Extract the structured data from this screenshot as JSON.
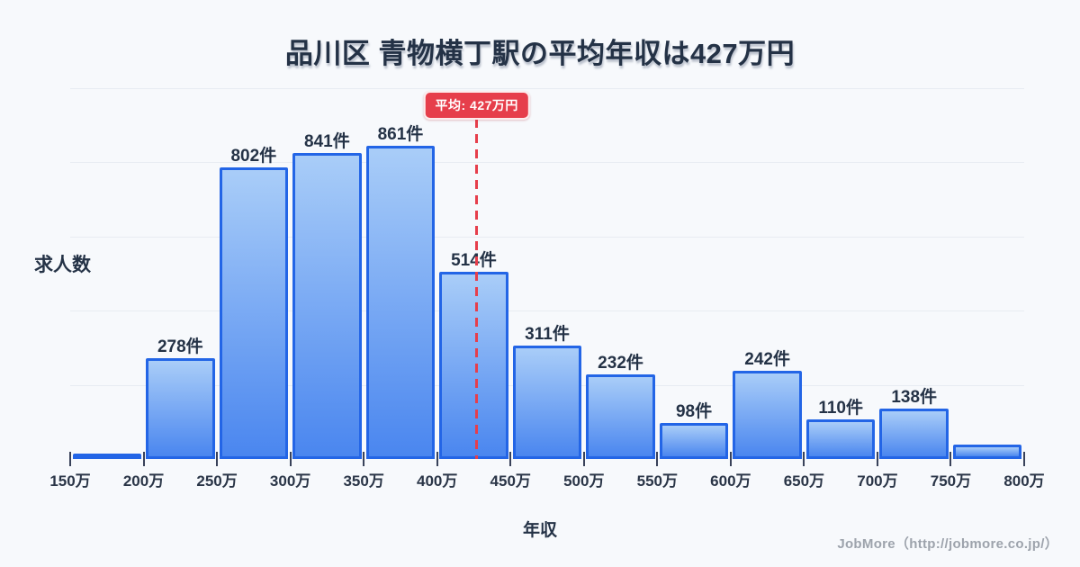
{
  "title": "品川区 青物横丁駅の平均年収は427万円",
  "average_badge": "平均: 427万円",
  "footer": "JobMore（http://jobmore.co.jp/）",
  "unit_suffix": "件",
  "colors": {
    "background": "#f7f9fc",
    "bar_top": "#a9cdf8",
    "bar_bottom": "#4a86ef",
    "bar_border": "#2365e6",
    "average_red": "#e63e4b",
    "grid": "#e8ecf2",
    "text_dark": "#243246",
    "footer_gray": "#9da3ac"
  },
  "chart_data": {
    "type": "bar",
    "title": "品川区 青物横丁駅の平均年収は427万円",
    "xlabel": "年収",
    "ylabel": "求人数",
    "x_ticks": [
      "150万",
      "200万",
      "250万",
      "300万",
      "350万",
      "400万",
      "450万",
      "500万",
      "550万",
      "600万",
      "650万",
      "700万",
      "750万",
      "800万"
    ],
    "x_range": [
      150,
      800
    ],
    "categories": [
      "150万-200万",
      "200万-250万",
      "250万-300万",
      "300万-350万",
      "350万-400万",
      "400万-450万",
      "450万-500万",
      "500万-550万",
      "550万-600万",
      "600万-650万",
      "650万-700万",
      "700万-750万",
      "750万-800万"
    ],
    "values": [
      15,
      278,
      802,
      841,
      861,
      514,
      311,
      232,
      98,
      242,
      110,
      138,
      40
    ],
    "bar_labels": [
      "",
      "278件",
      "802件",
      "841件",
      "861件",
      "514件",
      "311件",
      "232件",
      "98件",
      "242件",
      "110件",
      "138件",
      ""
    ],
    "ylim": [
      0,
      1020
    ],
    "gridline_values": [
      204,
      408,
      612,
      816,
      1020
    ],
    "average": {
      "x_value": 427,
      "label": "平均: 427万円"
    },
    "grid": true,
    "legend": false
  }
}
